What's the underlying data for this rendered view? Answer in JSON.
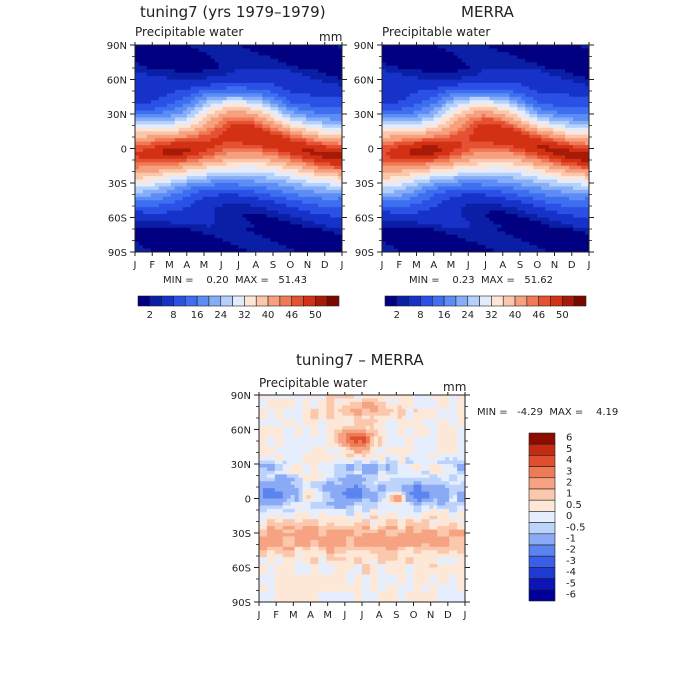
{
  "chart_data": [
    {
      "type": "heatmap",
      "title": "tuning7 (yrs 1979–1979)",
      "subtitle": "Precipitable water",
      "units": "mm",
      "x_ticks": [
        "J",
        "F",
        "M",
        "A",
        "M",
        "J",
        "J",
        "A",
        "S",
        "O",
        "N",
        "D",
        "J"
      ],
      "y_ticks": [
        "90N",
        "60N",
        "30N",
        "0",
        "30S",
        "60S",
        "90S"
      ],
      "stats_text": "MIN =    0.20  MAX =   51.43",
      "min": 0.2,
      "max": 51.43,
      "colorbar_levels": [
        0,
        2,
        4,
        8,
        12,
        16,
        20,
        24,
        28,
        32,
        36,
        40,
        44,
        46,
        48,
        50,
        52
      ],
      "colorbar_labels": [
        "2",
        "8",
        "16",
        "24",
        "32",
        "40",
        "46",
        "50"
      ]
    },
    {
      "type": "heatmap",
      "title": "MERRA",
      "subtitle": "Precipitable water",
      "x_ticks": [
        "J",
        "F",
        "M",
        "A",
        "M",
        "J",
        "J",
        "A",
        "S",
        "O",
        "N",
        "D",
        "J"
      ],
      "y_ticks": [
        "90N",
        "60N",
        "30N",
        "0",
        "30S",
        "60S",
        "90S"
      ],
      "stats_text": "MIN =    0.23  MAX =   51.62",
      "min": 0.23,
      "max": 51.62,
      "colorbar_levels": [
        0,
        2,
        4,
        8,
        12,
        16,
        20,
        24,
        28,
        32,
        36,
        40,
        44,
        46,
        48,
        50,
        52
      ],
      "colorbar_labels": [
        "2",
        "8",
        "16",
        "24",
        "32",
        "40",
        "46",
        "50"
      ]
    },
    {
      "type": "heatmap",
      "title": "tuning7 – MERRA",
      "subtitle": "Precipitable water",
      "units": "mm",
      "x_ticks": [
        "J",
        "F",
        "M",
        "A",
        "M",
        "J",
        "J",
        "A",
        "S",
        "O",
        "N",
        "D",
        "J"
      ],
      "y_ticks": [
        "90N",
        "60N",
        "30N",
        "0",
        "30S",
        "60S",
        "90S"
      ],
      "stats_text": "MIN =   -4.29  MAX =    4.19",
      "min": -4.29,
      "max": 4.19,
      "colorbar_labels": [
        "6",
        "5",
        "4",
        "3",
        "2",
        "1",
        "0.5",
        "0",
        "-0.5",
        "-1",
        "-2",
        "-3",
        "-4",
        "-5",
        "-6"
      ]
    }
  ],
  "colors": {
    "abs_palette": [
      "#000080",
      "#0a1ea6",
      "#1732c8",
      "#2a50e6",
      "#3d6ff0",
      "#5c8cf5",
      "#85adf8",
      "#b5d0fb",
      "#e2ecfd",
      "#fde6d8",
      "#fbc7ac",
      "#f7a07e",
      "#f17a56",
      "#e55132",
      "#d23213",
      "#a81a08",
      "#7a0a00"
    ],
    "diff_palette": [
      "#000099",
      "#0a14b8",
      "#1f3ad1",
      "#3a5ee8",
      "#5b84f0",
      "#8aaaf5",
      "#bcd3fb",
      "#e6eefd",
      "#fde8d8",
      "#fbc8ad",
      "#f6a383",
      "#ef7a57",
      "#e14e2e",
      "#c22a11",
      "#8c0c00"
    ]
  }
}
